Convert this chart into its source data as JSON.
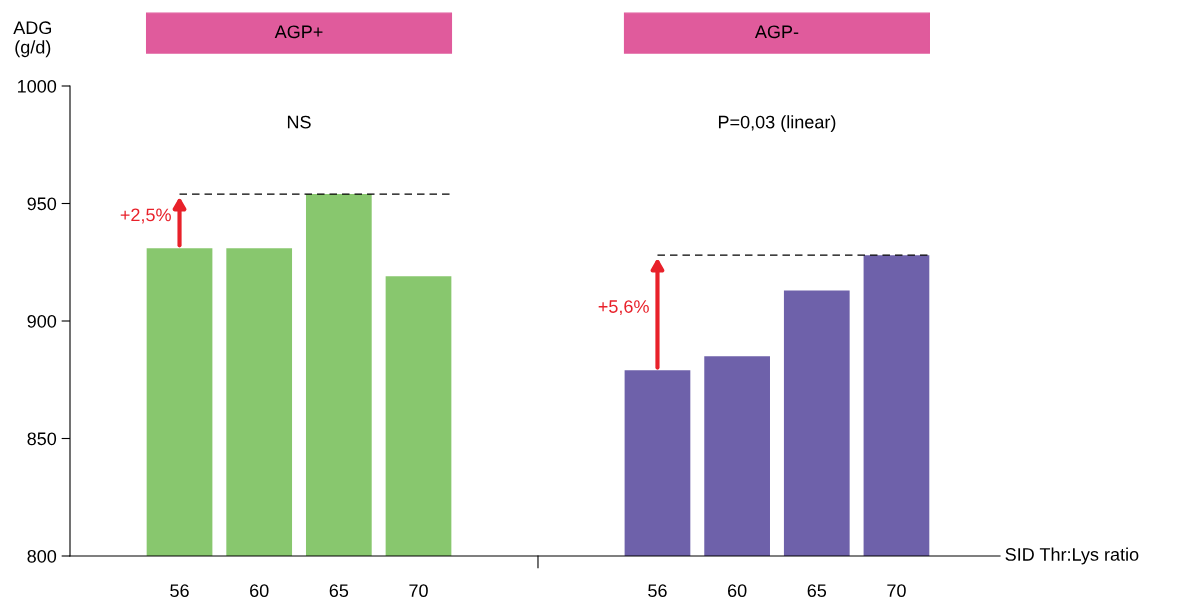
{
  "chart_data": {
    "type": "bar",
    "ylabel": "ADG\n(g/d)",
    "xlabel": "SID Thr:Lys ratio",
    "categories": [
      "56",
      "60",
      "65",
      "70",
      null,
      null,
      "56",
      "60",
      "65",
      "70"
    ],
    "series": [
      {
        "color": "#88c76e",
        "values": [
          931,
          931,
          954,
          919,
          null,
          null,
          null,
          null,
          null,
          null
        ]
      },
      {
        "color": "#6e61aa",
        "values": [
          null,
          null,
          null,
          null,
          null,
          null,
          879,
          885,
          913,
          928
        ]
      }
    ],
    "ylim": [
      800,
      1000
    ],
    "yticks": [
      800,
      850,
      900,
      950,
      1000
    ],
    "ref_lines": [
      {
        "axis": "y",
        "value": 954,
        "color": "#000000",
        "line_style": "dashed"
      },
      {
        "axis": "y",
        "value": 928,
        "color": "#000000",
        "line_style": "dashed"
      }
    ],
    "annotations": [
      "AGP+",
      "AGP-",
      "NS",
      "P=0,03 (linear)",
      "+2,5%",
      "+5,6%"
    ],
    "grid": false
  }
}
